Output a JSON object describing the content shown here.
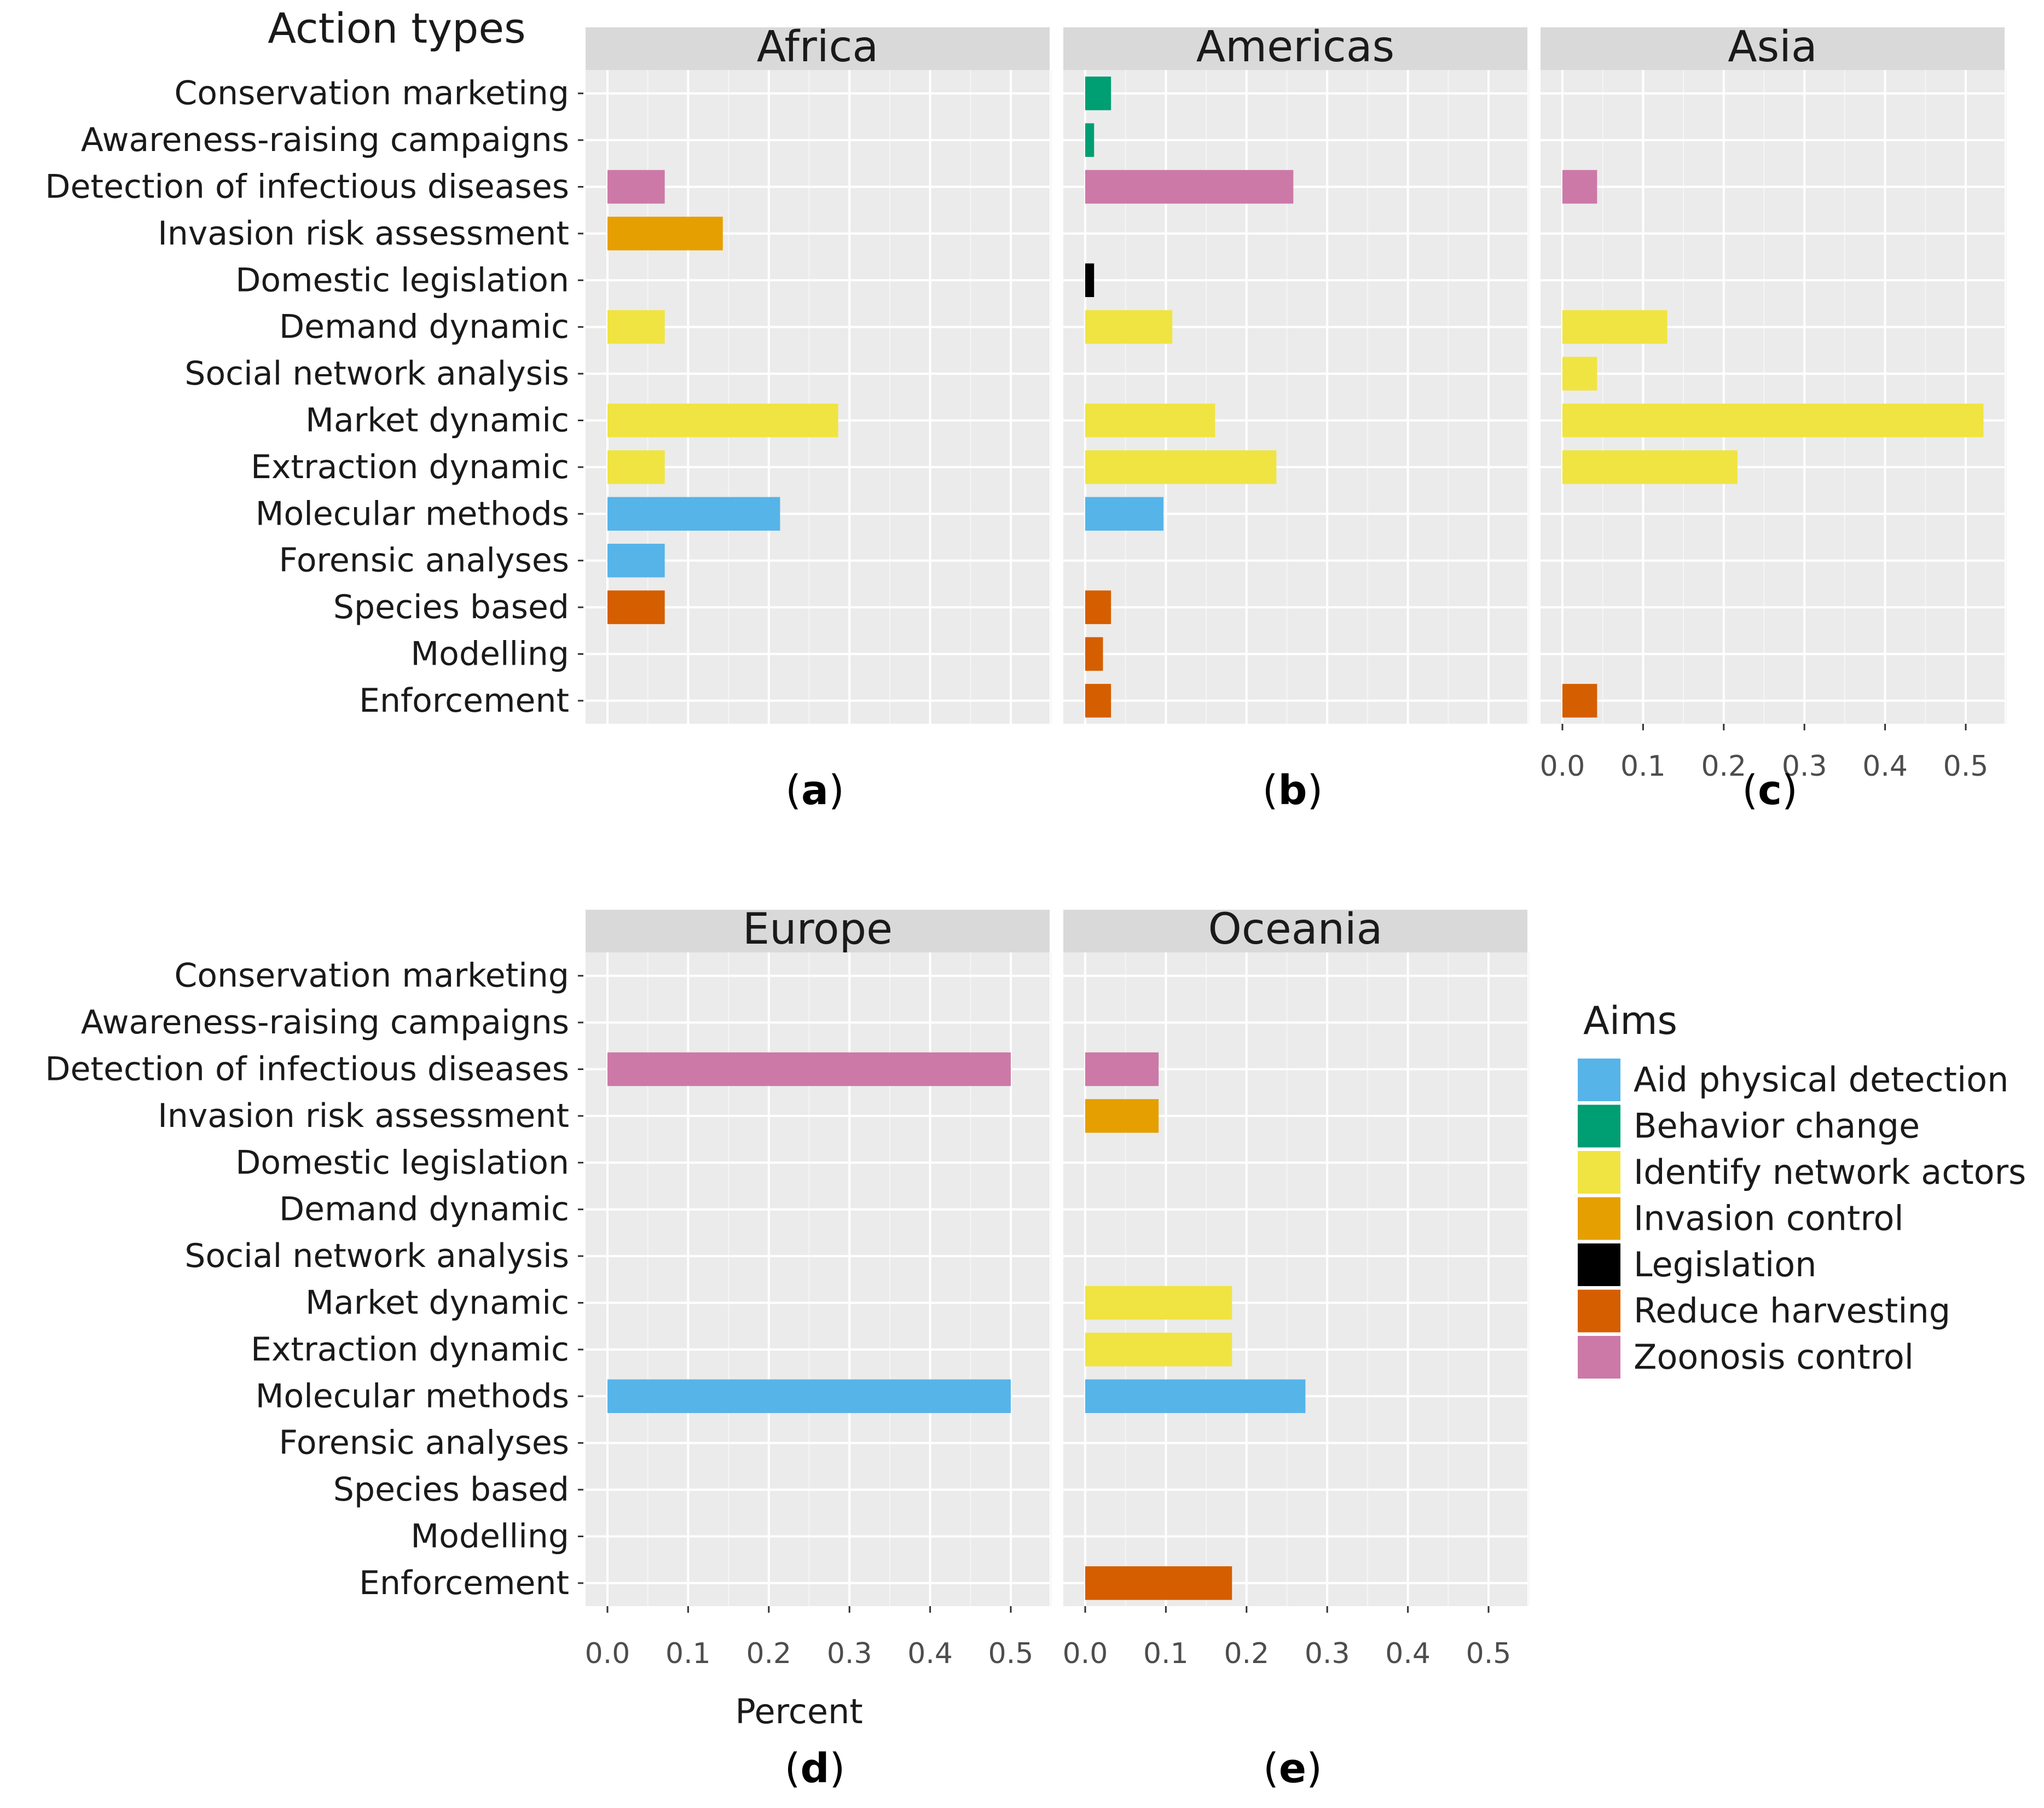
{
  "chart_data": {
    "type": "bar",
    "orientation": "horizontal",
    "y_axis_title": "Action types",
    "x_axis_title": "Percent",
    "xlim": [
      0,
      0.55
    ],
    "x_ticks": [
      "0.0",
      "0.1",
      "0.2",
      "0.3",
      "0.4",
      "0.5"
    ],
    "categories": [
      "Conservation marketing",
      "Awareness-raising campaigns",
      "Detection of infectious diseases",
      "Invasion risk assessment",
      "Domestic legislation",
      "Demand dynamic",
      "Social network analysis",
      "Market dynamic",
      "Extraction dynamic",
      "Molecular methods",
      "Forensic analyses",
      "Species based",
      "Modelling",
      "Enforcement"
    ],
    "category_aims": [
      "Behavior change",
      "Behavior change",
      "Zoonosis control",
      "Invasion control",
      "Legislation",
      "Identify network actors",
      "Identify network actors",
      "Identify network actors",
      "Identify network actors",
      "Aid physical detection",
      "Aid physical detection",
      "Reduce harvesting",
      "Reduce harvesting",
      "Reduce harvesting"
    ],
    "legend": {
      "title": "Aims",
      "entries": [
        {
          "name": "Aid physical detection",
          "color": "#56B4E9"
        },
        {
          "name": "Behavior change",
          "color": "#009E73"
        },
        {
          "name": "Identify network actors",
          "color": "#F0E442"
        },
        {
          "name": "Invasion control",
          "color": "#E69F00"
        },
        {
          "name": "Legislation",
          "color": "#000000"
        },
        {
          "name": "Reduce harvesting",
          "color": "#D55E00"
        },
        {
          "name": "Zoonosis control",
          "color": "#CC79A7"
        }
      ]
    },
    "panels": [
      {
        "region": "Africa",
        "label": "a",
        "values": [
          0,
          0,
          0.071,
          0.143,
          0,
          0.071,
          0,
          0.286,
          0.071,
          0.214,
          0.071,
          0.071,
          0,
          0
        ]
      },
      {
        "region": "Americas",
        "label": "b",
        "values": [
          0.032,
          0.011,
          0.258,
          0,
          0.011,
          0.108,
          0,
          0.161,
          0.237,
          0.097,
          0,
          0.032,
          0.022,
          0.032
        ]
      },
      {
        "region": "Asia",
        "label": "c",
        "values": [
          0,
          0,
          0.043,
          0,
          0,
          0.13,
          0.043,
          0.522,
          0.217,
          0,
          0,
          0,
          0,
          0.043
        ]
      },
      {
        "region": "Europe",
        "label": "d",
        "values": [
          0,
          0,
          0.5,
          0,
          0,
          0,
          0,
          0,
          0,
          0.5,
          0,
          0,
          0,
          0
        ]
      },
      {
        "region": "Oceania",
        "label": "e",
        "values": [
          0,
          0,
          0.091,
          0.091,
          0,
          0,
          0,
          0.182,
          0.182,
          0.273,
          0,
          0,
          0,
          0.182
        ]
      }
    ]
  }
}
